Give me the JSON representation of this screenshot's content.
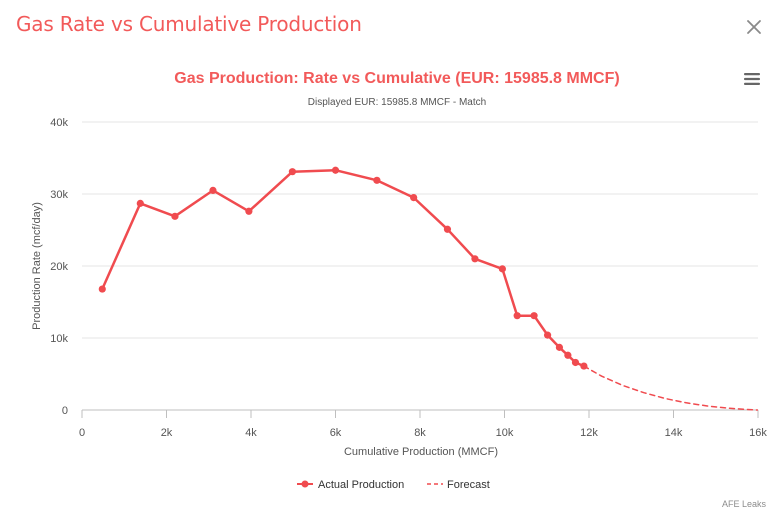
{
  "modal": {
    "title": "Gas Rate vs Cumulative Production"
  },
  "credit": "AFE Leaks",
  "colors": {
    "accent": "#f25a5a",
    "series": "#f04b4f"
  },
  "chart_data": {
    "type": "line",
    "title": "Gas Production: Rate vs Cumulative (EUR: 15985.8 MMCF)",
    "subtitle": "Displayed EUR: 15985.8 MMCF - Match",
    "xlabel": "Cumulative Production (MMCF)",
    "ylabel": "Production Rate (mcf/day)",
    "xlim": [
      0,
      16000
    ],
    "ylim": [
      0,
      40000
    ],
    "x_ticks": [
      0,
      2000,
      4000,
      6000,
      8000,
      10000,
      12000,
      14000,
      16000
    ],
    "x_tick_labels": [
      "0",
      "2k",
      "4k",
      "6k",
      "8k",
      "10k",
      "12k",
      "14k",
      "16k"
    ],
    "y_ticks": [
      0,
      10000,
      20000,
      30000,
      40000
    ],
    "y_tick_labels": [
      "0",
      "10k",
      "20k",
      "30k",
      "40k"
    ],
    "grid": true,
    "legend_position": "bottom-center",
    "series": [
      {
        "name": "Actual Production",
        "style": "solid-with-markers",
        "x": [
          480,
          1380,
          2200,
          3100,
          3950,
          4980,
          6000,
          6980,
          7850,
          8650,
          9300,
          9950,
          10300,
          10700,
          11020,
          11300,
          11500,
          11680,
          11880
        ],
        "y": [
          16800,
          28700,
          26900,
          30500,
          27600,
          33100,
          33300,
          31900,
          29500,
          25100,
          21000,
          19600,
          13100,
          13100,
          10400,
          8700,
          7600,
          6600,
          6100
        ]
      },
      {
        "name": "Forecast",
        "style": "dashed",
        "x": [
          11880,
          12300,
          12800,
          13300,
          13800,
          14300,
          14800,
          15300,
          15700,
          15985.8
        ],
        "y": [
          6100,
          4700,
          3400,
          2400,
          1600,
          1000,
          550,
          250,
          80,
          0
        ]
      }
    ]
  }
}
